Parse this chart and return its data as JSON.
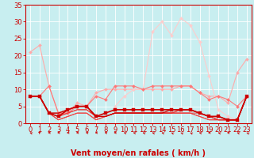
{
  "title": "",
  "xlabel": "Vent moyen/en rafales ( km/h )",
  "ylabel": "",
  "bg_color": "#c8eef0",
  "grid_color": "#ffffff",
  "axis_color": "#cc0000",
  "text_color": "#cc0000",
  "xlim": [
    -0.5,
    23.5
  ],
  "ylim": [
    0,
    35
  ],
  "yticks": [
    0,
    5,
    10,
    15,
    20,
    25,
    30,
    35
  ],
  "xticks": [
    0,
    1,
    2,
    3,
    4,
    5,
    6,
    7,
    8,
    9,
    10,
    11,
    12,
    13,
    14,
    15,
    16,
    17,
    18,
    19,
    20,
    21,
    22,
    23
  ],
  "lines": [
    {
      "x": [
        0,
        1,
        2,
        3,
        4,
        5,
        6,
        7,
        8,
        9,
        10,
        11,
        12,
        13,
        14,
        15,
        16,
        17,
        18,
        19,
        20,
        21,
        22,
        23
      ],
      "y": [
        21,
        23,
        11,
        3,
        3,
        6,
        5,
        9,
        10,
        10,
        10,
        10,
        10,
        10,
        10,
        10,
        11,
        11,
        9,
        8,
        8,
        6,
        15,
        19
      ],
      "color": "#ffaaaa",
      "lw": 0.8,
      "marker": "D",
      "ms": 2.0,
      "zorder": 2
    },
    {
      "x": [
        0,
        1,
        2,
        3,
        4,
        5,
        6,
        7,
        8,
        9,
        10,
        11,
        12,
        13,
        14,
        15,
        16,
        17,
        18,
        19,
        20,
        21,
        22,
        23
      ],
      "y": [
        8,
        8,
        11,
        3,
        3,
        5,
        5,
        8,
        7,
        11,
        11,
        11,
        10,
        11,
        11,
        11,
        11,
        11,
        9,
        7,
        8,
        7,
        5,
        8
      ],
      "color": "#ff7777",
      "lw": 0.8,
      "marker": "D",
      "ms": 2.0,
      "zorder": 3
    },
    {
      "x": [
        0,
        1,
        2,
        3,
        4,
        5,
        6,
        7,
        8,
        9,
        10,
        11,
        12,
        13,
        14,
        15,
        16,
        17,
        18,
        19,
        20,
        21,
        22,
        23
      ],
      "y": [
        8,
        8,
        3,
        2,
        4,
        5,
        5,
        2,
        3,
        4,
        4,
        4,
        4,
        4,
        4,
        4,
        4,
        4,
        3,
        2,
        2,
        1,
        1,
        8
      ],
      "color": "#cc0000",
      "lw": 1.2,
      "marker": "s",
      "ms": 2.5,
      "zorder": 5
    },
    {
      "x": [
        0,
        1,
        2,
        3,
        4,
        5,
        6,
        7,
        8,
        9,
        10,
        11,
        12,
        13,
        14,
        15,
        16,
        17,
        18,
        19,
        20,
        21,
        22,
        23
      ],
      "y": [
        8,
        8,
        3,
        3,
        4,
        5,
        5,
        2,
        2,
        3,
        3,
        3,
        3,
        3,
        3,
        4,
        4,
        4,
        3,
        2,
        2,
        1,
        1,
        8
      ],
      "color": "#cc0000",
      "lw": 0.9,
      "marker": null,
      "ms": 0,
      "zorder": 4
    },
    {
      "x": [
        0,
        1,
        2,
        3,
        4,
        5,
        6,
        7,
        8,
        9,
        10,
        11,
        12,
        13,
        14,
        15,
        16,
        17,
        18,
        19,
        20,
        21,
        22,
        23
      ],
      "y": [
        8,
        8,
        3,
        3,
        4,
        5,
        5,
        2,
        2,
        3,
        3,
        3,
        3,
        3,
        3,
        3,
        4,
        4,
        3,
        2,
        1,
        1,
        1,
        8
      ],
      "color": "#dd2222",
      "lw": 0.7,
      "marker": null,
      "ms": 0,
      "zorder": 3
    },
    {
      "x": [
        0,
        1,
        2,
        3,
        4,
        5,
        6,
        7,
        8,
        9,
        10,
        11,
        12,
        13,
        14,
        15,
        16,
        17,
        18,
        19,
        20,
        21,
        22,
        23
      ],
      "y": [
        8,
        8,
        3,
        2,
        3,
        4,
        4,
        2,
        2,
        3,
        3,
        3,
        3,
        3,
        3,
        3,
        4,
        4,
        3,
        2,
        1,
        1,
        1,
        8
      ],
      "color": "#ee3333",
      "lw": 0.7,
      "marker": null,
      "ms": 0,
      "zorder": 3
    },
    {
      "x": [
        0,
        1,
        2,
        3,
        4,
        5,
        6,
        7,
        8,
        9,
        10,
        11,
        12,
        13,
        14,
        15,
        16,
        17,
        18,
        19,
        20,
        21,
        22,
        23
      ],
      "y": [
        8,
        8,
        3,
        2,
        3,
        4,
        4,
        2,
        2,
        3,
        3,
        3,
        3,
        3,
        3,
        3,
        3,
        3,
        3,
        2,
        1,
        1,
        1,
        8
      ],
      "color": "#dd4444",
      "lw": 0.7,
      "marker": null,
      "ms": 0,
      "zorder": 2
    },
    {
      "x": [
        0,
        1,
        2,
        3,
        4,
        5,
        6,
        7,
        8,
        9,
        10,
        11,
        12,
        13,
        14,
        15,
        16,
        17,
        18,
        19,
        20,
        21,
        22,
        23
      ],
      "y": [
        8,
        8,
        3,
        1,
        2,
        3,
        3,
        1,
        2,
        3,
        3,
        3,
        3,
        3,
        3,
        3,
        3,
        3,
        2,
        1,
        1,
        1,
        1,
        8
      ],
      "color": "#cc3333",
      "lw": 0.7,
      "marker": null,
      "ms": 0,
      "zorder": 2
    },
    {
      "x": [
        0,
        1,
        2,
        3,
        4,
        5,
        6,
        7,
        8,
        9,
        10,
        11,
        12,
        13,
        14,
        15,
        16,
        17,
        18,
        19,
        20,
        21,
        22,
        23
      ],
      "y": [
        8,
        8,
        3,
        1,
        2,
        3,
        3,
        1,
        2,
        3,
        3,
        3,
        3,
        3,
        3,
        3,
        3,
        3,
        2,
        1,
        1,
        1,
        1,
        8
      ],
      "color": "#ff4444",
      "lw": 0.7,
      "marker": null,
      "ms": 0,
      "zorder": 2
    },
    {
      "x": [
        9,
        10,
        11,
        12,
        13,
        14,
        15,
        16,
        17,
        18,
        19,
        20,
        21,
        22,
        23
      ],
      "y": [
        5,
        8,
        10,
        10,
        27,
        30,
        26,
        31,
        29,
        24,
        14,
        4,
        2,
        1,
        8
      ],
      "color": "#ffcccc",
      "lw": 0.8,
      "marker": "D",
      "ms": 2.0,
      "zorder": 2
    }
  ],
  "arrow_angles": [
    225,
    200,
    270,
    270,
    270,
    270,
    250,
    270,
    250,
    270,
    230,
    230,
    225,
    225,
    225,
    220,
    220,
    220,
    230,
    270,
    225,
    250,
    225,
    220
  ],
  "xlabel_fontsize": 7,
  "tick_fontsize": 6
}
